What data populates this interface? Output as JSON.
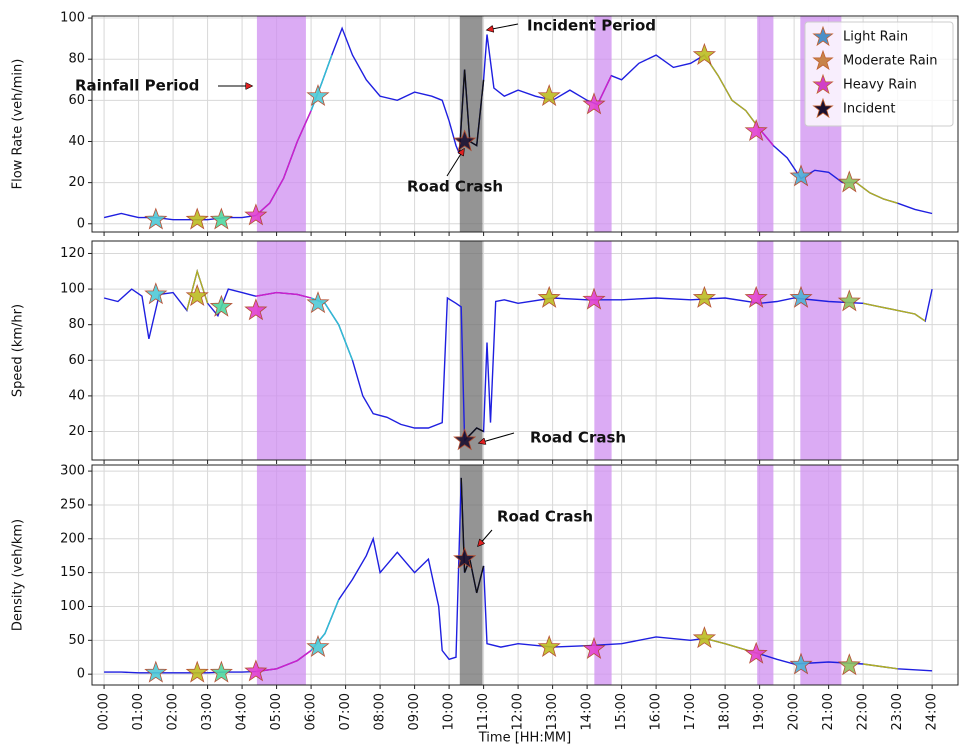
{
  "chart_data": [
    {
      "type": "line",
      "ylabel": "Flow Rate (veh/min)",
      "ylim": [
        -4,
        101
      ],
      "yticks": [
        0,
        20,
        40,
        60,
        80,
        100
      ],
      "grid": true,
      "legend": {
        "position": "upper right",
        "entries": [
          {
            "name": "Light Rain",
            "color": "#4a90c8"
          },
          {
            "name": "Moderate Rain",
            "color": "#c8844a"
          },
          {
            "name": "Heavy Rain",
            "color": "#d040c8"
          },
          {
            "name": "Incident",
            "color": "#1a1030"
          }
        ]
      },
      "annotations": [
        "Rainfall Period",
        "Incident Period",
        "Road Crash"
      ],
      "lines": [
        {
          "color": "#1f1fe0",
          "x": [
            0,
            0.5,
            1,
            1.5,
            2,
            2.5,
            3,
            3.5,
            4,
            4.4,
            4.8,
            5.2,
            5.6,
            6,
            6.3,
            6.6,
            6.9,
            7.2,
            7.6,
            8,
            8.5,
            9,
            9.5,
            9.8,
            10,
            10.2,
            10.3,
            10.45,
            10.6,
            10.8,
            11,
            11.1,
            11.3,
            11.6,
            12,
            12.5,
            13,
            13.5,
            14,
            14.3,
            14.7,
            15,
            15.5,
            16,
            16.5,
            17,
            17.4,
            17.8,
            18.2,
            18.6,
            19,
            19.4,
            19.8,
            20.2,
            20.6,
            21,
            21.4,
            21.8,
            22.2,
            22.6,
            23,
            23.5,
            24
          ],
          "values": [
            3,
            5,
            3,
            3,
            2,
            2,
            2,
            3,
            3,
            4,
            10,
            22,
            40,
            55,
            68,
            82,
            95,
            82,
            70,
            62,
            60,
            64,
            62,
            60,
            50,
            38,
            34,
            75,
            40,
            38,
            70,
            92,
            66,
            62,
            65,
            62,
            60,
            65,
            60,
            58,
            72,
            70,
            78,
            82,
            76,
            78,
            82,
            72,
            60,
            55,
            46,
            38,
            32,
            22,
            26,
            25,
            20,
            20,
            15,
            12,
            10,
            7,
            5
          ]
        },
        {
          "color": "#d020c8",
          "x": [
            4.4,
            4.8,
            5.2,
            5.6,
            6
          ],
          "values": [
            4,
            10,
            22,
            40,
            55
          ]
        },
        {
          "color": "#30c0d0",
          "x": [
            6,
            6.3,
            6.6
          ],
          "values": [
            55,
            68,
            82
          ]
        },
        {
          "color": "#101010",
          "x": [
            10.3,
            10.45,
            10.6,
            10.8,
            11
          ],
          "values": [
            34,
            75,
            40,
            38,
            70
          ]
        },
        {
          "color": "#d020c8",
          "x": [
            14.3,
            14.7
          ],
          "values": [
            58,
            72
          ]
        },
        {
          "color": "#b0b020",
          "x": [
            17.4,
            17.8,
            18.2,
            18.6,
            19
          ],
          "values": [
            82,
            72,
            60,
            55,
            46
          ]
        },
        {
          "color": "#d020c8",
          "x": [
            19,
            19.4
          ],
          "values": [
            46,
            38
          ]
        },
        {
          "color": "#b0b020",
          "x": [
            21.8,
            22.2,
            22.6,
            23
          ],
          "values": [
            20,
            15,
            12,
            10
          ]
        }
      ],
      "markers": {
        "x": [
          1.5,
          2.7,
          3.4,
          4.4,
          6.2,
          10.45,
          12.9,
          14.2,
          17.4,
          18.9,
          20.2,
          21.6
        ],
        "values": [
          2,
          2,
          2,
          4,
          62,
          40,
          62,
          58,
          82,
          45,
          23,
          20
        ],
        "colors": [
          "#4fc9d6",
          "#bcbd22",
          "#50d8a0",
          "#e040d0",
          "#4fc9d6",
          "#1a1030",
          "#bcbd22",
          "#e040d0",
          "#bcbd22",
          "#e040d0",
          "#4fb0d6",
          "#8cc060"
        ]
      }
    },
    {
      "type": "line",
      "ylabel": "Speed (km/hr)",
      "ylim": [
        4,
        127
      ],
      "yticks": [
        20,
        40,
        60,
        80,
        100,
        120
      ],
      "grid": true,
      "annotations": [
        "Road Crash"
      ],
      "lines": [
        {
          "color": "#1f1fe0",
          "x": [
            0,
            0.4,
            0.8,
            1.1,
            1.3,
            1.6,
            2,
            2.4,
            2.7,
            3,
            3.3,
            3.6,
            4,
            4.4,
            5,
            5.6,
            6,
            6.4,
            6.8,
            7.2,
            7.5,
            7.8,
            8.2,
            8.6,
            9,
            9.4,
            9.8,
            9.95,
            10.2,
            10.35,
            10.45,
            10.6,
            10.8,
            11,
            11.1,
            11.2,
            11.35,
            11.6,
            12,
            13,
            14,
            15,
            16,
            17,
            18,
            19,
            19.5,
            20,
            21,
            22,
            22.5,
            23,
            23.5,
            23.8,
            24
          ],
          "values": [
            95,
            93,
            100,
            96,
            72,
            97,
            98,
            88,
            110,
            92,
            85,
            100,
            98,
            96,
            98,
            97,
            95,
            92,
            80,
            60,
            40,
            30,
            28,
            24,
            22,
            22,
            25,
            95,
            92,
            90,
            15,
            18,
            22,
            20,
            70,
            25,
            93,
            94,
            92,
            95,
            94,
            94,
            95,
            94,
            95,
            92,
            93,
            95,
            93,
            92,
            90,
            88,
            86,
            82,
            100
          ]
        },
        {
          "color": "#b0b020",
          "x": [
            2.4,
            2.7,
            3
          ],
          "values": [
            88,
            110,
            92
          ]
        },
        {
          "color": "#d020c8",
          "x": [
            4.4,
            5,
            5.6,
            6
          ],
          "values": [
            96,
            98,
            97,
            95
          ]
        },
        {
          "color": "#30c0d0",
          "x": [
            6,
            6.4,
            6.8,
            7.2
          ],
          "values": [
            95,
            92,
            80,
            60
          ]
        },
        {
          "color": "#101010",
          "x": [
            10.45,
            10.6,
            10.8,
            11
          ],
          "values": [
            15,
            18,
            22,
            20
          ]
        },
        {
          "color": "#b0b020",
          "x": [
            22,
            22.5,
            23,
            23.5,
            23.8
          ],
          "values": [
            92,
            90,
            88,
            86,
            82
          ]
        }
      ],
      "markers": {
        "x": [
          1.5,
          2.7,
          3.4,
          4.4,
          6.2,
          10.45,
          12.9,
          14.2,
          17.4,
          18.9,
          20.2,
          21.6
        ],
        "values": [
          97,
          96,
          90,
          88,
          92,
          15,
          95,
          94,
          95,
          95,
          95,
          93
        ],
        "colors": [
          "#4fc9d6",
          "#bcbd22",
          "#50d8a0",
          "#e040d0",
          "#4fc9d6",
          "#1a1030",
          "#bcbd22",
          "#e040d0",
          "#bcbd22",
          "#e040d0",
          "#4fb0d6",
          "#8cc060"
        ]
      }
    },
    {
      "type": "line",
      "ylabel": "Density (veh/km)",
      "ylim": [
        -16,
        309
      ],
      "yticks": [
        0,
        50,
        100,
        150,
        200,
        250,
        300
      ],
      "grid": true,
      "xlabel": "Time [HH:MM]",
      "xlim": [
        -0.35,
        24.75
      ],
      "xticks": [
        {
          "value": 0,
          "label": "00:00"
        },
        {
          "value": 1,
          "label": "01:00"
        },
        {
          "value": 2,
          "label": "02:00"
        },
        {
          "value": 3,
          "label": "03:00"
        },
        {
          "value": 4,
          "label": "04:00"
        },
        {
          "value": 5,
          "label": "05:00"
        },
        {
          "value": 6,
          "label": "06:00"
        },
        {
          "value": 7,
          "label": "07:00"
        },
        {
          "value": 8,
          "label": "08:00"
        },
        {
          "value": 9,
          "label": "09:00"
        },
        {
          "value": 10,
          "label": "10:00"
        },
        {
          "value": 11,
          "label": "11:00"
        },
        {
          "value": 12,
          "label": "12:00"
        },
        {
          "value": 13,
          "label": "13:00"
        },
        {
          "value": 14,
          "label": "14:00"
        },
        {
          "value": 15,
          "label": "15:00"
        },
        {
          "value": 16,
          "label": "16:00"
        },
        {
          "value": 17,
          "label": "17:00"
        },
        {
          "value": 18,
          "label": "18:00"
        },
        {
          "value": 19,
          "label": "19:00"
        },
        {
          "value": 20,
          "label": "20:00"
        },
        {
          "value": 21,
          "label": "21:00"
        },
        {
          "value": 22,
          "label": "22:00"
        },
        {
          "value": 23,
          "label": "23:00"
        },
        {
          "value": 24,
          "label": "24:00"
        }
      ],
      "spans": [
        {
          "start": 4.43,
          "end": 5.85,
          "color": "#cf8ff0"
        },
        {
          "start": 14.21,
          "end": 14.71,
          "color": "#cf8ff0"
        },
        {
          "start": 18.93,
          "end": 19.4,
          "color": "#cf8ff0"
        },
        {
          "start": 20.18,
          "end": 21.37,
          "color": "#cf8ff0"
        },
        {
          "start": 10.31,
          "end": 10.97,
          "color": "#707070"
        }
      ],
      "annotations": [
        "Road Crash"
      ],
      "lines": [
        {
          "color": "#1f1fe0",
          "x": [
            0,
            0.5,
            1,
            1.5,
            2,
            2.5,
            3,
            3.5,
            4,
            4.4,
            5,
            5.6,
            6,
            6.4,
            6.8,
            7.2,
            7.6,
            7.8,
            8,
            8.5,
            9,
            9.4,
            9.7,
            9.8,
            10,
            10.2,
            10.35,
            10.45,
            10.6,
            10.8,
            11,
            11.1,
            11.5,
            12,
            13,
            14,
            15,
            16,
            17,
            17.4,
            18,
            19,
            19.5,
            20,
            21,
            22,
            23,
            24
          ],
          "values": [
            3,
            3,
            2,
            2,
            2,
            2,
            2,
            3,
            3,
            4,
            8,
            20,
            35,
            60,
            110,
            140,
            175,
            200,
            150,
            180,
            150,
            170,
            100,
            35,
            22,
            25,
            290,
            150,
            170,
            120,
            160,
            45,
            40,
            45,
            40,
            42,
            45,
            55,
            50,
            53,
            45,
            30,
            22,
            15,
            18,
            15,
            8,
            5
          ]
        },
        {
          "color": "#d020c8",
          "x": [
            4.4,
            5,
            5.6,
            6
          ],
          "values": [
            4,
            8,
            20,
            35
          ]
        },
        {
          "color": "#30c0d0",
          "x": [
            6,
            6.4,
            6.8
          ],
          "values": [
            35,
            60,
            110
          ]
        },
        {
          "color": "#101010",
          "x": [
            10.35,
            10.45,
            10.6,
            10.8,
            11
          ],
          "values": [
            290,
            150,
            170,
            120,
            160
          ]
        },
        {
          "color": "#b0b020",
          "x": [
            17.4,
            18,
            19
          ],
          "values": [
            53,
            45,
            30
          ]
        },
        {
          "color": "#b0b020",
          "x": [
            22,
            23
          ],
          "values": [
            15,
            8
          ]
        }
      ],
      "markers": {
        "x": [
          1.5,
          2.7,
          3.4,
          4.4,
          6.2,
          10.45,
          12.9,
          14.2,
          17.4,
          18.9,
          20.2,
          21.6
        ],
        "values": [
          2,
          2,
          2,
          4,
          40,
          170,
          40,
          37,
          53,
          30,
          14,
          13
        ],
        "colors": [
          "#4fc9d6",
          "#bcbd22",
          "#50d8a0",
          "#e040d0",
          "#4fc9d6",
          "#1a1030",
          "#bcbd22",
          "#e040d0",
          "#bcbd22",
          "#e040d0",
          "#4fb0d6",
          "#8cc060"
        ]
      }
    }
  ]
}
